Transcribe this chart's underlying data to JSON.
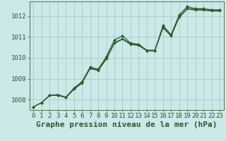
{
  "title": "Graphe pression niveau de la mer (hPa)",
  "bg_color": "#cce8e8",
  "grid_color": "#aacfcf",
  "line_color": "#2d5a27",
  "marker_color": "#2d5a27",
  "xlim": [
    -0.5,
    23.5
  ],
  "ylim": [
    1007.5,
    1012.7
  ],
  "yticks": [
    1008,
    1009,
    1010,
    1011,
    1012
  ],
  "xticks": [
    0,
    1,
    2,
    3,
    4,
    5,
    6,
    7,
    8,
    9,
    10,
    11,
    12,
    13,
    14,
    15,
    16,
    17,
    18,
    19,
    20,
    21,
    22,
    23
  ],
  "series": [
    [
      1007.65,
      1007.85,
      1008.2,
      1008.2,
      1008.1,
      1008.55,
      1008.85,
      1009.55,
      1009.45,
      1010.05,
      1010.85,
      1011.05,
      1010.7,
      1010.65,
      1010.35,
      1010.35,
      1011.55,
      1011.1,
      1012.05,
      1012.45,
      1012.35,
      1012.35,
      1012.3,
      1012.3
    ],
    [
      1007.65,
      1007.85,
      1008.2,
      1008.2,
      1008.1,
      1008.5,
      1008.8,
      1009.5,
      1009.4,
      1009.95,
      1010.7,
      1010.9,
      1010.65,
      1010.6,
      1010.35,
      1010.35,
      1011.45,
      1011.05,
      1011.95,
      1012.35,
      1012.3,
      1012.3,
      1012.25,
      1012.25
    ],
    [
      1007.65,
      1007.85,
      1008.2,
      1008.25,
      1008.12,
      1008.52,
      1008.82,
      1009.52,
      1009.42,
      1009.97,
      1010.72,
      1010.92,
      1010.67,
      1010.62,
      1010.37,
      1010.37,
      1011.47,
      1011.07,
      1011.97,
      1012.37,
      1012.32,
      1012.32,
      1012.27,
      1012.27
    ],
    [
      1007.65,
      1007.85,
      1008.2,
      1008.22,
      1008.08,
      1008.48,
      1008.78,
      1009.48,
      1009.38,
      1009.93,
      1010.68,
      1010.88,
      1010.63,
      1010.58,
      1010.33,
      1010.33,
      1011.43,
      1011.03,
      1011.93,
      1012.33,
      1012.28,
      1012.28,
      1012.23,
      1012.23
    ]
  ],
  "title_fontsize": 8,
  "tick_fontsize": 6.5
}
